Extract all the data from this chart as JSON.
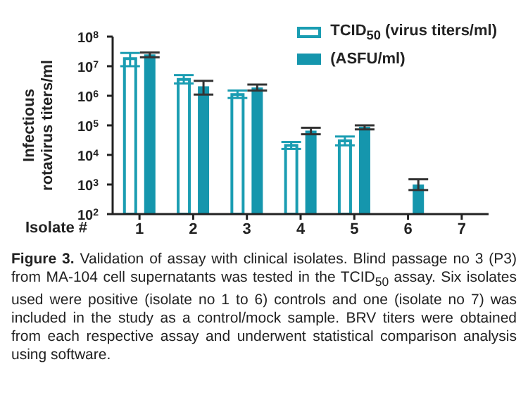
{
  "chart_data": {
    "type": "bar",
    "title": "Figure 3.",
    "annotations": [
      "Validation of assay with clinical isolates. Blind passage no 3 (P3) from MA-104 cell supernatants was tested in the TCID$_{50}$ assay. Six isolates used were positive (isolate no 1 to 6) controls and one (isolate no 7) was included in the study as a control/mock sample. BRV titers were obtained from each respective assay and underwent statistical comparison analysis using software."
    ],
    "xlabel": "Isolate #",
    "ylabel": "Infectious rotavirus titers/ml",
    "categories": [
      "1",
      "2",
      "3",
      "4",
      "5",
      "6",
      "7"
    ],
    "series": [
      {
        "name": "TCID$_{50}$ (virus titers/ml)",
        "color": "#1a9db2",
        "values": [
          18000000,
          3600000,
          1100000,
          21000,
          30000,
          null,
          null
        ],
        "errors": [
          [
            10000000,
            28000000
          ],
          [
            2600000,
            5000000
          ],
          [
            840000,
            1500000
          ],
          [
            16000,
            27500
          ],
          [
            21000,
            42000
          ],
          null,
          null
        ]
      },
      {
        "name": "(ASFU/ml)",
        "color": "#1596ad",
        "values": [
          25000000,
          2100000,
          1900000,
          66000,
          90000,
          1000,
          null
        ],
        "errors": [
          [
            20000000,
            29000000
          ],
          [
            1100000,
            3200000
          ],
          [
            1500000,
            2400000
          ],
          [
            50000,
            83000
          ],
          [
            73000,
            100000
          ],
          [
            650,
            1500
          ],
          null
        ]
      }
    ],
    "log": "y",
    "ylim": [
      100,
      100000000
    ],
    "yticks": [
      {
        "value": 100,
        "label": "10$^{2}$"
      },
      {
        "value": 1000,
        "label": "10$^{3}$"
      },
      {
        "value": 10000,
        "label": "10$^{4}$"
      },
      {
        "value": 100000,
        "label": "10$^{5}$"
      },
      {
        "value": 1000000,
        "label": "10$^{6}$"
      },
      {
        "value": 10000000,
        "label": "10$^{7}$"
      },
      {
        "value": 100000000,
        "label": "10$^{8}$"
      }
    ],
    "legend": "top right",
    "grid": false
  }
}
